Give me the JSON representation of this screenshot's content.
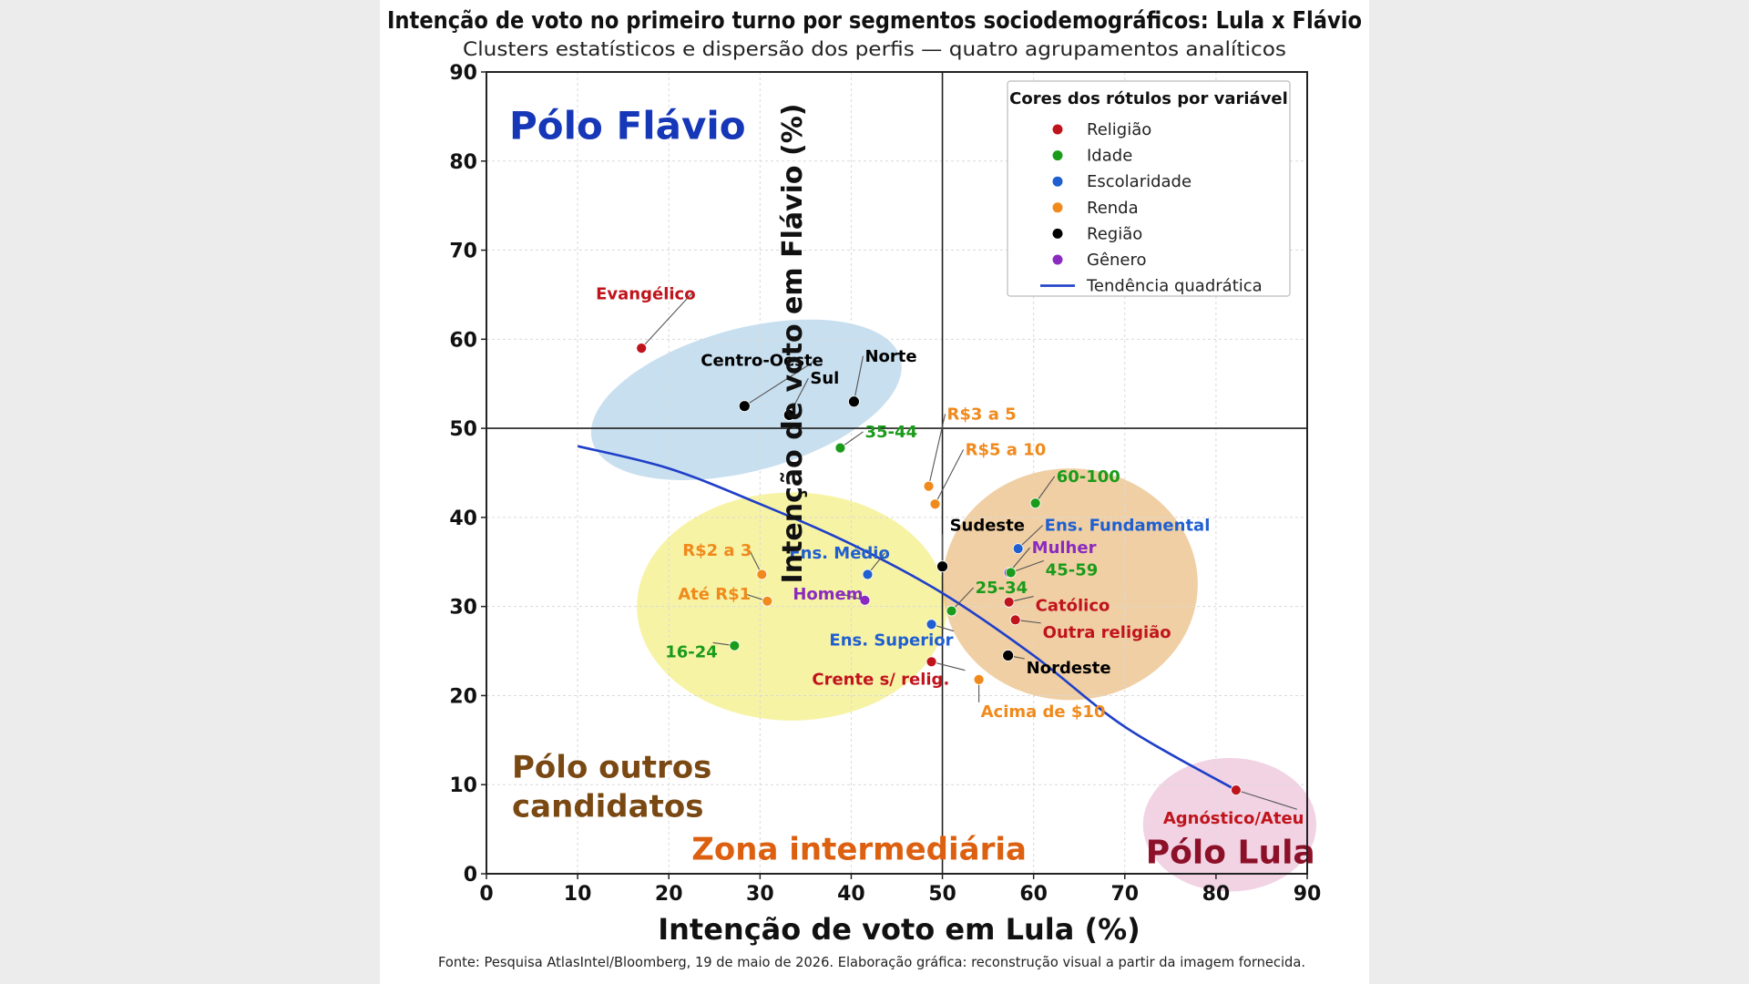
{
  "chart_data": {
    "type": "scatter",
    "title": "Intenção de voto no primeiro turno por segmentos sociodemográficos: Lula x Flávio",
    "subtitle": "Clusters estatísticos e dispersão dos perfis — quatro agrupamentos analíticos",
    "xlabel": "Intenção de voto em Lula (%)",
    "ylabel": "Intenção de voto em Flávio (%)",
    "xlim": [
      0,
      90
    ],
    "ylim": [
      0,
      90
    ],
    "xticks": [
      "0",
      "10",
      "20",
      "30",
      "40",
      "50",
      "60",
      "70",
      "80",
      "90"
    ],
    "yticks": [
      "0",
      "10",
      "20",
      "30",
      "40",
      "50",
      "60",
      "70",
      "80",
      "90"
    ],
    "grid": true,
    "reference_lines": {
      "x": 50,
      "y": 50
    },
    "source": "Fonte: Pesquisa AtlasIntel/Bloomberg, 19 de maio de 2026. Elaboração gráfica: reconstrução visual a partir da imagem fornecida.",
    "legend": {
      "title": "Cores dos rótulos por variável",
      "position": "top-right",
      "items": [
        {
          "label": "Religião",
          "color": "#c0141c",
          "kind": "marker"
        },
        {
          "label": "Idade",
          "color": "#1a9b1a",
          "kind": "marker"
        },
        {
          "label": "Escolaridade",
          "color": "#1f5fd0",
          "kind": "marker"
        },
        {
          "label": "Renda",
          "color": "#f08a1c",
          "kind": "marker"
        },
        {
          "label": "Região",
          "color": "#000000",
          "kind": "marker"
        },
        {
          "label": "Gênero",
          "color": "#8a2bc0",
          "kind": "marker"
        },
        {
          "label": "Tendência quadrática",
          "color": "#1f3fc8",
          "kind": "line"
        }
      ]
    },
    "colors": {
      "Religião": "#c0141c",
      "Idade": "#1a9b1a",
      "Escolaridade": "#1f5fd0",
      "Renda": "#f08a1c",
      "Região": "#000000",
      "Gênero": "#8a2bc0",
      "Escolaridade_label": "#1f5fd0"
    },
    "trend": {
      "x": [
        10,
        20,
        30,
        40,
        50,
        60,
        70,
        82
      ],
      "y": [
        48,
        45.5,
        41.5,
        37,
        31.5,
        24.5,
        16.5,
        9.5
      ]
    },
    "clusters": [
      {
        "name": "Pólo Flávio",
        "cx": 28.5,
        "cy": 53.2,
        "rx": 17.5,
        "ry": 8,
        "rotate_deg": -15,
        "fill": "#b9d6ea"
      },
      {
        "name": "Pólo outros candidatos",
        "cx": 33.5,
        "cy": 30,
        "rx": 17,
        "ry": 12.8,
        "rotate_deg": 0,
        "fill": "#f5f08c"
      },
      {
        "name": "Zona intermediária",
        "cx": 64,
        "cy": 32.5,
        "rx": 14,
        "ry": 13,
        "rotate_deg": 0,
        "fill": "#ecc28a"
      },
      {
        "name": "Pólo Lula",
        "cx": 81.5,
        "cy": 5.5,
        "rx": 9.5,
        "ry": 7.5,
        "rotate_deg": 0,
        "fill": "#edc6dc"
      }
    ],
    "region_labels": [
      {
        "text": "Pólo Flávio",
        "x": 2.5,
        "y": 82.5,
        "color": "#1537b8",
        "size": 42
      },
      {
        "text": "Pólo outros",
        "x": 2.8,
        "y": 10.8,
        "color": "#7a4812",
        "size": 34
      },
      {
        "text": "candidatos",
        "x": 2.8,
        "y": 6.4,
        "color": "#7a4812",
        "size": 34
      },
      {
        "text": "Zona intermediária",
        "x": 22.5,
        "y": 1.6,
        "color": "#dc6010",
        "size": 34
      },
      {
        "text": "Pólo Lula",
        "x": 72.3,
        "y": 1.2,
        "color": "#8c1028",
        "size": 36
      }
    ],
    "points": [
      {
        "label": "Evangélico",
        "group": "Religião",
        "x": 17,
        "y": 59,
        "lx": 12,
        "ly": 64.5
      },
      {
        "label": "Centro-Oeste",
        "group": "Região",
        "x": 28.3,
        "y": 52.5,
        "lx": 23.5,
        "ly": 57
      },
      {
        "label": "Sul",
        "group": "Região",
        "x": 33.2,
        "y": 51.5,
        "lx": 35.5,
        "ly": 55
      },
      {
        "label": "Norte",
        "group": "Região",
        "x": 40.3,
        "y": 53,
        "lx": 41.5,
        "ly": 57.5
      },
      {
        "label": "35-44",
        "group": "Idade",
        "x": 38.8,
        "y": 47.8,
        "lx": 41.5,
        "ly": 49
      },
      {
        "label": "R$3 a 5",
        "group": "Renda",
        "x": 48.5,
        "y": 43.5,
        "lx": 50.5,
        "ly": 51
      },
      {
        "label": "R$5 a 10",
        "group": "Renda",
        "x": 49.2,
        "y": 41.5,
        "lx": 52.5,
        "ly": 47
      },
      {
        "label": "60-100",
        "group": "Idade",
        "x": 60.2,
        "y": 41.6,
        "lx": 62.5,
        "ly": 44
      },
      {
        "label": "Sudeste",
        "group": "Região",
        "x": 50,
        "y": 34.5,
        "lx": 50.8,
        "ly": 38.5
      },
      {
        "label": "Ens. Fundamental",
        "group": "Escolaridade",
        "x": 58.3,
        "y": 36.5,
        "lx": 61.2,
        "ly": 38.5
      },
      {
        "label": "Mulher",
        "group": "Gênero",
        "x": 57.3,
        "y": 33.8,
        "lx": 59.8,
        "ly": 36
      },
      {
        "label": "45-59",
        "group": "Idade",
        "x": 57.5,
        "y": 33.8,
        "lx": 61.3,
        "ly": 33.5
      },
      {
        "label": "25-34",
        "group": "Idade",
        "x": 51,
        "y": 29.5,
        "lx": 53.6,
        "ly": 31.5
      },
      {
        "label": "Católico",
        "group": "Religião",
        "x": 57.3,
        "y": 30.5,
        "lx": 60.2,
        "ly": 29.5
      },
      {
        "label": "Outra religião",
        "group": "Religião",
        "x": 58,
        "y": 28.5,
        "lx": 61,
        "ly": 26.5
      },
      {
        "label": "Nordeste",
        "group": "Região",
        "x": 57.2,
        "y": 24.5,
        "lx": 59.2,
        "ly": 22.5
      },
      {
        "label": "Acima de $10",
        "group": "Renda",
        "x": 54,
        "y": 21.8,
        "lx": 54.2,
        "ly": 17.6
      },
      {
        "label": "R$2 a 3",
        "group": "Renda",
        "x": 30.2,
        "y": 33.6,
        "lx": 21.5,
        "ly": 35.7
      },
      {
        "label": "Até R$1",
        "group": "Renda",
        "x": 30.8,
        "y": 30.6,
        "lx": 21,
        "ly": 30.8
      },
      {
        "label": "Ens. Médio",
        "group": "Escolaridade",
        "x": 41.8,
        "y": 33.6,
        "lx": 33.2,
        "ly": 35.4
      },
      {
        "label": "Homem",
        "group": "Gênero",
        "x": 41.5,
        "y": 30.7,
        "lx": 33.6,
        "ly": 30.8
      },
      {
        "label": "Ens. Superior",
        "group": "Escolaridade",
        "x": 48.8,
        "y": 28,
        "lx": 37.6,
        "ly": 25.6
      },
      {
        "label": "16-24",
        "group": "Idade",
        "x": 27.2,
        "y": 25.6,
        "lx": 19.6,
        "ly": 24.3
      },
      {
        "label": "Crente s/ relig.",
        "group": "Religião",
        "x": 48.8,
        "y": 23.8,
        "lx": 35.7,
        "ly": 21.2
      },
      {
        "label": "Agnóstico/Ateu",
        "group": "Religião",
        "x": 82.2,
        "y": 9.4,
        "lx": 74.2,
        "ly": 5.6
      }
    ]
  }
}
